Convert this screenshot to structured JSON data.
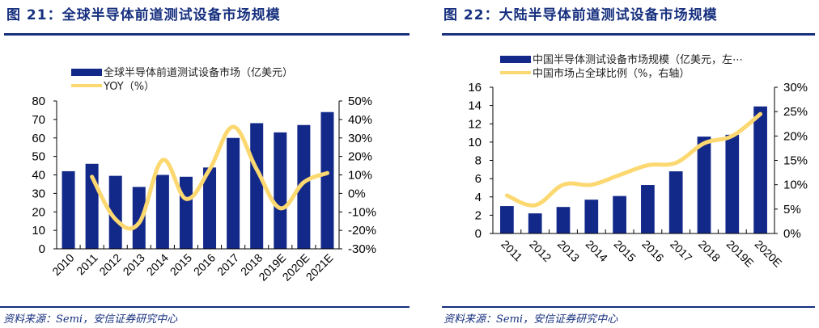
{
  "colors": {
    "bar": "#13298a",
    "line": "#fcd871",
    "title": "#17307f",
    "axis": "#000000"
  },
  "left_panel": {
    "title": "图 21：全球半导体前道测试设备市场规模",
    "source": "资料来源：Semi，安信证券研究中心"
  },
  "right_panel": {
    "title": "图 22：大陆半导体前道测试设备市场规模",
    "source": "资料来源：Semi，安信证券研究中心"
  },
  "chart_data": [
    {
      "type": "bar",
      "title": "图 21：全球半导体前道测试设备市场规模",
      "categories": [
        "2010",
        "2011",
        "2012",
        "2013",
        "2014",
        "2015",
        "2016",
        "2017",
        "2018",
        "2019E",
        "2020E",
        "2021E"
      ],
      "series": [
        {
          "name": "全球半导体前道测试设备市场（亿美元）",
          "type": "bar",
          "axis": "left",
          "values": [
            42,
            46,
            39.5,
            33.5,
            40,
            39,
            44,
            60,
            68,
            63,
            67,
            74
          ]
        },
        {
          "name": "YOY（%）",
          "type": "line",
          "axis": "right",
          "values": [
            null,
            9,
            -14,
            -16,
            18,
            -3,
            13,
            36,
            13,
            -8,
            6,
            11
          ]
        }
      ],
      "ylim": [
        0,
        80
      ],
      "yticks": [
        "0",
        "10",
        "20",
        "30",
        "40",
        "50",
        "60",
        "70",
        "80"
      ],
      "y2lim": [
        -30,
        50
      ],
      "y2ticks": [
        "-30%",
        "-20%",
        "-10%",
        "0%",
        "10%",
        "20%",
        "30%",
        "40%",
        "50%"
      ],
      "xlabel": "",
      "ylabel": "",
      "y2label": "",
      "grid": false,
      "legend": "top-left"
    },
    {
      "type": "bar",
      "title": "图 22：大陆半导体前道测试设备市场规模",
      "categories": [
        "2011",
        "2012",
        "2013",
        "2014",
        "2015",
        "2016",
        "2017",
        "2018",
        "2019E",
        "2020E"
      ],
      "series": [
        {
          "name": "中国半导体测试设备市场规模（亿美元，左⋯",
          "type": "bar",
          "axis": "left",
          "values": [
            3.0,
            2.2,
            2.9,
            3.7,
            4.1,
            5.3,
            6.8,
            10.6,
            10.8,
            13.9
          ]
        },
        {
          "name": "中国市场占全球比例（%，右轴）",
          "type": "line",
          "axis": "right",
          "values": [
            7.8,
            5.8,
            10,
            10,
            12,
            14,
            14.5,
            18.5,
            20,
            24.5
          ]
        }
      ],
      "ylim": [
        0,
        16
      ],
      "yticks": [
        "0",
        "2",
        "4",
        "6",
        "8",
        "10",
        "12",
        "14",
        "16"
      ],
      "y2lim": [
        0,
        30
      ],
      "y2ticks": [
        "0%",
        "5%",
        "10%",
        "15%",
        "20%",
        "25%",
        "30%"
      ],
      "xlabel": "",
      "ylabel": "",
      "y2label": "",
      "grid": false,
      "legend": "top-left"
    }
  ]
}
